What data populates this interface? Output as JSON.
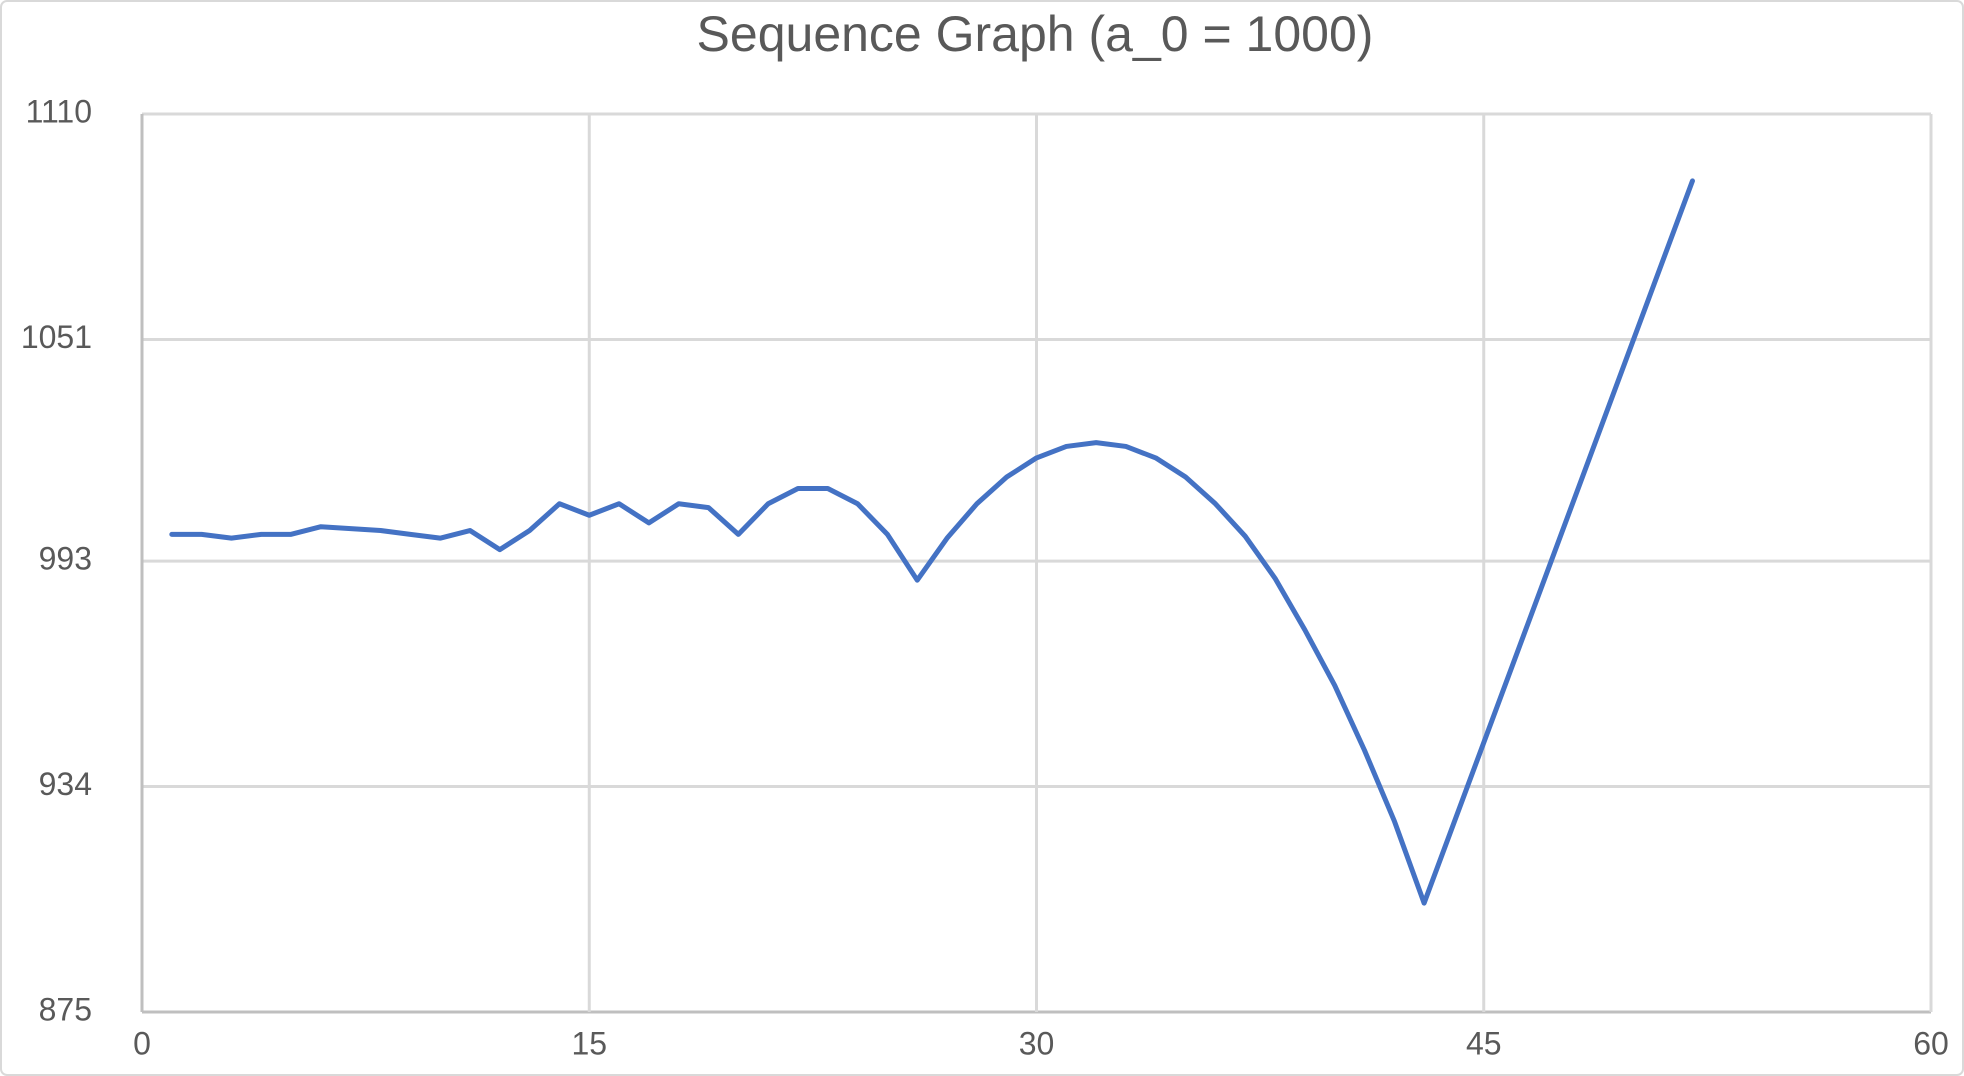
{
  "chart_data": {
    "type": "line",
    "title": "Sequence Graph (a_0 = 1000)",
    "x": [
      1,
      2,
      3,
      4,
      5,
      6,
      7,
      8,
      9,
      10,
      11,
      12,
      13,
      14,
      15,
      16,
      17,
      18,
      19,
      20,
      21,
      22,
      23,
      24,
      25,
      26,
      27,
      28,
      29,
      30,
      31,
      32,
      33,
      34,
      35,
      36,
      37,
      38,
      39,
      40,
      41,
      42,
      43,
      44,
      45,
      46,
      47,
      48,
      49,
      50,
      51,
      52
    ],
    "series": [
      {
        "color": "#4472c4",
        "values": [
          1000,
          1000,
          999,
          1000,
          1000,
          1002,
          1001.5,
          1001,
          1000,
          999,
          1001,
          996,
          1001,
          1008,
          1005,
          1008,
          1003,
          1008,
          1007,
          1000,
          1008,
          1012,
          1012,
          1008,
          1000,
          988,
          999,
          1008,
          1015,
          1020,
          1023,
          1024,
          1023,
          1020,
          1015,
          1008,
          999.5,
          988.5,
          975,
          960.5,
          943.5,
          925,
          903.5,
          924.5,
          945.5,
          966.5,
          987.5,
          1008.5,
          1029.5,
          1050.5,
          1071.5,
          1092.5
        ]
      }
    ],
    "xlim": [
      0,
      60
    ],
    "xticks": [
      0,
      15,
      30,
      45,
      60
    ],
    "ylim": [
      875,
      1110
    ],
    "yticks": [
      875,
      934,
      993,
      1051,
      1110
    ],
    "grid": true
  }
}
